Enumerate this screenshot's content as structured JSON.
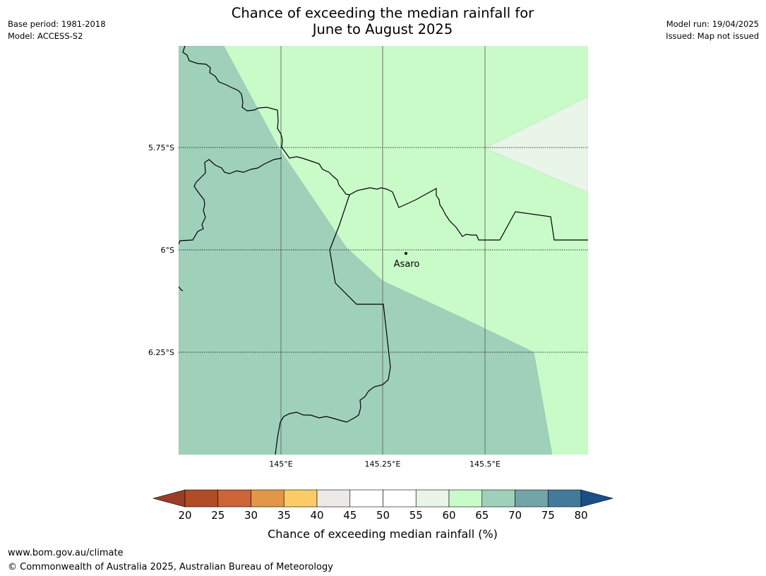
{
  "title_line1": "Chance of exceeding the median rainfall for",
  "title_line2": "June to August 2025",
  "meta_left": {
    "base_period": "Base period: 1981-2018",
    "model": "Model: ACCESS-S2"
  },
  "meta_right": {
    "model_run": "Model run: 19/04/2025",
    "issued": "Issued: Map not issued"
  },
  "map": {
    "latitude_labels": [
      "5.75°S",
      "6°S",
      "6.25°S"
    ],
    "longitude_labels": [
      "145°E",
      "145.25°E",
      "145.5°E"
    ],
    "place_label": "Asaro",
    "region_colors": {
      "65_70": "#9fd1ba",
      "60_65": "#c9fbc9",
      "55_60": "#e9f5e9"
    }
  },
  "colorbar": {
    "title": "Chance of exceeding median rainfall (%)",
    "ticks": [
      "20",
      "25",
      "30",
      "35",
      "40",
      "45",
      "50",
      "55",
      "60",
      "65",
      "70",
      "75",
      "80"
    ],
    "under_color": "#9b3d26",
    "over_color": "#1a4f88",
    "colors": [
      "#b14c27",
      "#cc6435",
      "#e29646",
      "#fdcc67",
      "#ede9e6",
      "#ffffff",
      "#ffffff",
      "#e8f5e8",
      "#c9fbc9",
      "#9fd1ba",
      "#72a5a8",
      "#437a9c"
    ]
  },
  "footer": {
    "url": "www.bom.gov.au/climate",
    "copyright": "© Commonwealth of Australia 2025, Australian Bureau of Meteorology"
  }
}
